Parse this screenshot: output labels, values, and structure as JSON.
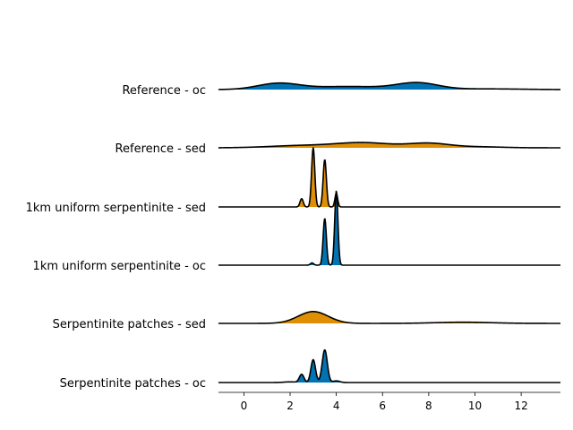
{
  "chart_data": {
    "type": "area",
    "subtype": "ridgeline",
    "title": "",
    "xlabel": "",
    "ylabel": "",
    "xlim": [
      -1.1,
      13.7
    ],
    "x_ticks": [
      0,
      2,
      4,
      6,
      8,
      10,
      12
    ],
    "x_tick_labels": [
      "0",
      "2",
      "4",
      "6",
      "8",
      "10",
      "12"
    ],
    "y_axis_visible": false,
    "grid": false,
    "legend": "none",
    "colors": {
      "oc": "#0173b2",
      "sed": "#de8f05",
      "outline": "#000000"
    },
    "series": [
      {
        "name": "Reference - oc",
        "color": "#0173b2",
        "peak_height": 0.12,
        "density_components": [
          {
            "mean": 1.5,
            "sd": 0.9,
            "weight": 0.7
          },
          {
            "mean": 4.5,
            "sd": 1.5,
            "weight": 0.35
          },
          {
            "mean": 7.5,
            "sd": 0.9,
            "weight": 0.75
          },
          {
            "mean": 10.5,
            "sd": 1.5,
            "weight": 0.08
          }
        ]
      },
      {
        "name": "Reference - sed",
        "color": "#de8f05",
        "peak_height": 0.09,
        "density_components": [
          {
            "mean": 2.5,
            "sd": 1.4,
            "weight": 0.45
          },
          {
            "mean": 5.2,
            "sd": 1.2,
            "weight": 1.0
          },
          {
            "mean": 8.0,
            "sd": 0.9,
            "weight": 0.9
          },
          {
            "mean": 10.2,
            "sd": 1.0,
            "weight": 0.2
          }
        ]
      },
      {
        "name": "1km uniform serpentinite - sed",
        "color": "#de8f05",
        "peak_height": 1.0,
        "density_components": [
          {
            "mean": 2.5,
            "sd": 0.07,
            "weight": 0.14
          },
          {
            "mean": 3.0,
            "sd": 0.07,
            "weight": 1.0
          },
          {
            "mean": 3.5,
            "sd": 0.07,
            "weight": 0.8
          },
          {
            "mean": 4.0,
            "sd": 0.06,
            "weight": 0.23
          }
        ]
      },
      {
        "name": "1km uniform serpentinite - oc",
        "color": "#0173b2",
        "peak_height": 1.25,
        "density_components": [
          {
            "mean": 2.95,
            "sd": 0.07,
            "weight": 0.03
          },
          {
            "mean": 3.5,
            "sd": 0.07,
            "weight": 0.63
          },
          {
            "mean": 4.0,
            "sd": 0.07,
            "weight": 1.0
          }
        ]
      },
      {
        "name": "Serpentinite patches - sed",
        "color": "#de8f05",
        "peak_height": 0.2,
        "density_components": [
          {
            "mean": 3.0,
            "sd": 0.65,
            "weight": 1.0
          },
          {
            "mean": 9.5,
            "sd": 1.2,
            "weight": 0.1
          }
        ]
      },
      {
        "name": "Serpentinite patches - oc",
        "color": "#0173b2",
        "peak_height": 0.55,
        "density_components": [
          {
            "mean": 2.0,
            "sd": 0.25,
            "weight": 0.02
          },
          {
            "mean": 2.5,
            "sd": 0.1,
            "weight": 0.25
          },
          {
            "mean": 3.0,
            "sd": 0.1,
            "weight": 0.7
          },
          {
            "mean": 3.5,
            "sd": 0.11,
            "weight": 1.0
          },
          {
            "mean": 4.0,
            "sd": 0.15,
            "weight": 0.05
          }
        ]
      }
    ]
  }
}
